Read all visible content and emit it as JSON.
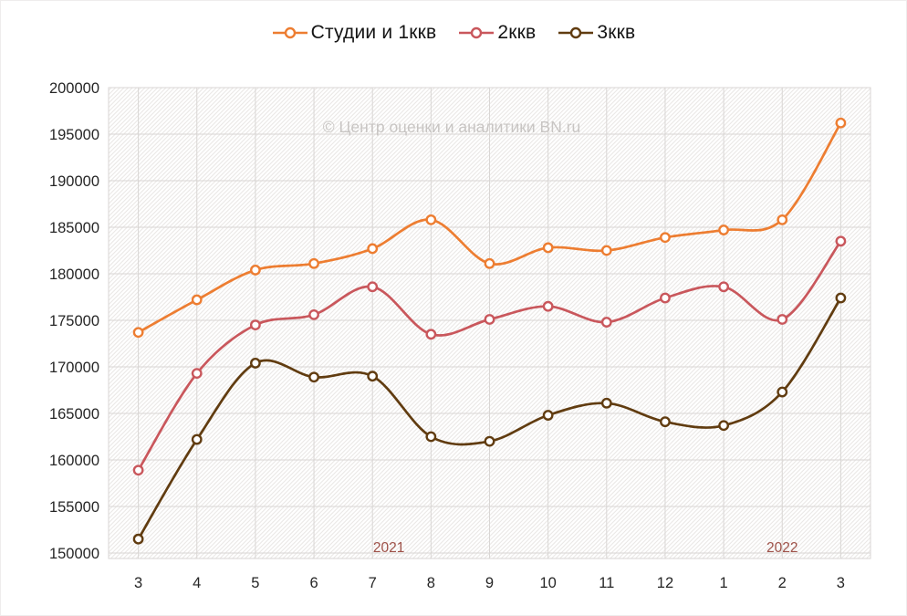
{
  "legend": {
    "items": [
      {
        "label": "Студии и 1ккв",
        "color": "#ED7D31"
      },
      {
        "label": "2ккв",
        "color": "#C9575C"
      },
      {
        "label": "3ккв",
        "color": "#613C10"
      }
    ]
  },
  "watermark": "© Центр оценки и аналитики BN.ru",
  "chart_data": {
    "type": "line",
    "line_style": "smooth",
    "marker": "open-circle",
    "categories": [
      "3",
      "4",
      "5",
      "6",
      "7",
      "8",
      "9",
      "10",
      "11",
      "12",
      "1",
      "2",
      "3"
    ],
    "series": [
      {
        "name": "Студии и 1ккв",
        "color": "#ED7D31",
        "values": [
          173700,
          177200,
          180400,
          181100,
          182700,
          185800,
          181100,
          182800,
          182500,
          183900,
          184700,
          185800,
          196200
        ]
      },
      {
        "name": "2ккв",
        "color": "#C9575C",
        "values": [
          158900,
          169300,
          174500,
          175600,
          178600,
          173500,
          175100,
          176500,
          174800,
          177400,
          178600,
          175100,
          183500
        ]
      },
      {
        "name": "3ккв",
        "color": "#613C10",
        "values": [
          151500,
          162200,
          170400,
          168900,
          169000,
          162500,
          162000,
          164800,
          166100,
          164100,
          163700,
          167300,
          177400
        ]
      }
    ],
    "ylim": [
      150000,
      200000
    ],
    "ytick_step": 5000,
    "yticks": [
      150000,
      155000,
      160000,
      165000,
      170000,
      175000,
      180000,
      185000,
      190000,
      195000,
      200000
    ],
    "grid": true,
    "legend_position": "top",
    "annotations": [
      {
        "text": "2021",
        "x_index": 4.28,
        "color": "#9E5148"
      },
      {
        "text": "2022",
        "x_index": 11.0,
        "color": "#9E5148"
      }
    ]
  },
  "colors": {
    "grid": "#D9D6D4",
    "hatch": "#E8E5E3",
    "axis_text": "#262626",
    "watermark_text": "#C8C5C3",
    "marker_fill": "#FFFFFF"
  }
}
